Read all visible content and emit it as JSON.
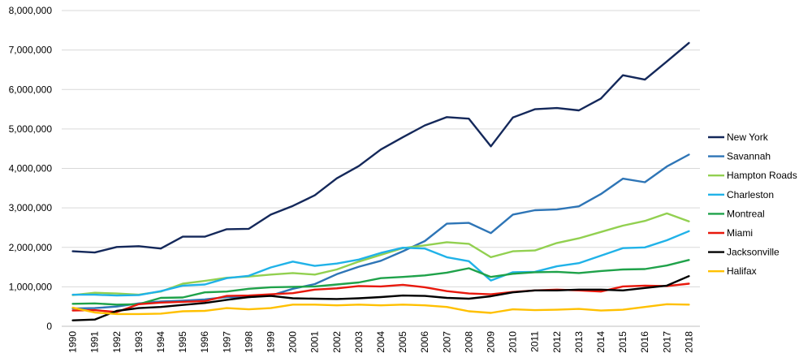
{
  "chart_data": {
    "type": "line",
    "title": "",
    "xlabel": "",
    "ylabel": "",
    "grid": true,
    "legend_position": "right",
    "ylim": [
      0,
      8000000
    ],
    "yticks": [
      0,
      1000000,
      2000000,
      3000000,
      4000000,
      5000000,
      6000000,
      7000000,
      8000000
    ],
    "ytick_labels": [
      "0",
      "1,000,000",
      "2,000,000",
      "3,000,000",
      "4,000,000",
      "5,000,000",
      "6,000,000",
      "7,000,000",
      "8,000,000"
    ],
    "x": [
      "1990",
      "1991",
      "1992",
      "1993",
      "1994",
      "1995",
      "1996",
      "1997",
      "1998",
      "1999",
      "2000",
      "2001",
      "2002",
      "2003",
      "2004",
      "2005",
      "2006",
      "2007",
      "2008",
      "2009",
      "2010",
      "2011",
      "2012",
      "2013",
      "2014",
      "2015",
      "2016",
      "2017",
      "2018"
    ],
    "series": [
      {
        "name": "New York",
        "color": "#14285a",
        "values": [
          1900000,
          1870000,
          2010000,
          2030000,
          1970000,
          2270000,
          2270000,
          2460000,
          2470000,
          2830000,
          3050000,
          3320000,
          3750000,
          4060000,
          4480000,
          4790000,
          5090000,
          5300000,
          5260000,
          4560000,
          5290000,
          5500000,
          5530000,
          5470000,
          5770000,
          6360000,
          6250000,
          6710000,
          7180000
        ]
      },
      {
        "name": "Savannah",
        "color": "#2e75b6",
        "values": [
          450000,
          460000,
          500000,
          580000,
          630000,
          650000,
          680000,
          740000,
          740000,
          780000,
          950000,
          1070000,
          1320000,
          1510000,
          1660000,
          1900000,
          2160000,
          2600000,
          2620000,
          2360000,
          2830000,
          2940000,
          2960000,
          3040000,
          3350000,
          3740000,
          3650000,
          4050000,
          4350000
        ]
      },
      {
        "name": "Hampton Roads",
        "color": "#92d050",
        "values": [
          790000,
          850000,
          830000,
          800000,
          880000,
          1080000,
          1150000,
          1230000,
          1260000,
          1310000,
          1350000,
          1310000,
          1440000,
          1640000,
          1810000,
          1980000,
          2050000,
          2130000,
          2090000,
          1750000,
          1900000,
          1920000,
          2110000,
          2230000,
          2390000,
          2550000,
          2670000,
          2860000,
          2660000
        ]
      },
      {
        "name": "Charleston",
        "color": "#20b2e8",
        "values": [
          800000,
          800000,
          780000,
          790000,
          890000,
          1030000,
          1060000,
          1220000,
          1280000,
          1490000,
          1640000,
          1530000,
          1590000,
          1690000,
          1860000,
          1990000,
          1970000,
          1750000,
          1650000,
          1160000,
          1370000,
          1380000,
          1520000,
          1600000,
          1790000,
          1980000,
          2000000,
          2180000,
          2410000
        ]
      },
      {
        "name": "Montreal",
        "color": "#1fa24a",
        "values": [
          570000,
          580000,
          550000,
          560000,
          720000,
          730000,
          860000,
          880000,
          950000,
          990000,
          1000000,
          1010000,
          1060000,
          1110000,
          1220000,
          1250000,
          1290000,
          1360000,
          1470000,
          1250000,
          1330000,
          1370000,
          1380000,
          1350000,
          1400000,
          1440000,
          1450000,
          1540000,
          1680000
        ]
      },
      {
        "name": "Miami",
        "color": "#e8180c",
        "values": [
          400000,
          410000,
          360000,
          560000,
          600000,
          620000,
          640000,
          770000,
          780000,
          810000,
          840000,
          930000,
          960000,
          1020000,
          1010000,
          1050000,
          990000,
          890000,
          830000,
          810000,
          870000,
          910000,
          930000,
          910000,
          880000,
          1010000,
          1030000,
          1020000,
          1080000
        ]
      },
      {
        "name": "Jacksonville",
        "color": "#000000",
        "values": [
          150000,
          170000,
          390000,
          460000,
          490000,
          540000,
          590000,
          670000,
          740000,
          770000,
          710000,
          700000,
          690000,
          710000,
          740000,
          780000,
          770000,
          720000,
          700000,
          760000,
          860000,
          910000,
          910000,
          930000,
          930000,
          910000,
          970000,
          1030000,
          1270000
        ]
      },
      {
        "name": "Halifax",
        "color": "#ffc000",
        "values": [
          470000,
          350000,
          310000,
          310000,
          320000,
          380000,
          390000,
          460000,
          430000,
          460000,
          550000,
          550000,
          530000,
          550000,
          530000,
          550000,
          530000,
          490000,
          380000,
          340000,
          430000,
          410000,
          420000,
          440000,
          400000,
          420000,
          490000,
          560000,
          550000
        ]
      }
    ]
  }
}
